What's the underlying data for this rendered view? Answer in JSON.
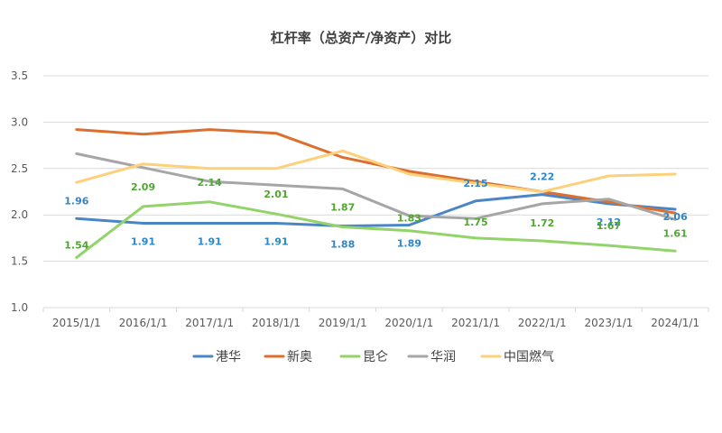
{
  "chart_data": {
    "type": "line",
    "title": "杠杆率（总资产/净资产）对比",
    "xlabel": "",
    "ylabel": "",
    "categories": [
      "2015/1/1",
      "2016/1/1",
      "2017/1/1",
      "2018/1/1",
      "2019/1/1",
      "2020/1/1",
      "2021/1/1",
      "2022/1/1",
      "2023/1/1",
      "2024/1/1"
    ],
    "yticks": [
      "1.0",
      "1.5",
      "2.0",
      "2.5",
      "3.0",
      "3.5"
    ],
    "ylim": [
      1.0,
      3.5
    ],
    "grid": true,
    "legend_position": "bottom",
    "series": [
      {
        "name": "港华",
        "color": "#4a86c5",
        "values": [
          1.96,
          1.91,
          1.91,
          1.91,
          1.88,
          1.89,
          2.15,
          2.22,
          2.12,
          2.06
        ],
        "labels": [
          "1.96",
          "1.91",
          "1.91",
          "1.91",
          "1.88",
          "1.89",
          "2.15",
          "2.22",
          "2.12",
          "2.06"
        ],
        "label_color": "#2e86c8"
      },
      {
        "name": "新奥",
        "color": "#dc6f2e",
        "values": [
          2.92,
          2.87,
          2.92,
          2.88,
          2.62,
          2.47,
          2.36,
          2.25,
          2.14,
          2.02
        ]
      },
      {
        "name": "昆仑",
        "color": "#92d36a",
        "values": [
          1.54,
          2.09,
          2.14,
          2.01,
          1.87,
          1.83,
          1.75,
          1.72,
          1.67,
          1.61
        ],
        "labels": [
          "1.54",
          "2.09",
          "2.14",
          "2.01",
          "1.87",
          "1.83",
          "1.75",
          "1.72",
          "1.67",
          "1.61"
        ],
        "label_color": "#4ea72e"
      },
      {
        "name": "华润",
        "color": "#a6a6a6",
        "values": [
          2.66,
          2.51,
          2.36,
          2.32,
          2.28,
          1.99,
          1.96,
          2.12,
          2.17,
          1.95
        ]
      },
      {
        "name": "中国燃气",
        "color": "#fdd07c",
        "values": [
          2.35,
          2.55,
          2.5,
          2.5,
          2.69,
          2.44,
          2.34,
          2.25,
          2.42,
          2.44
        ]
      }
    ]
  }
}
